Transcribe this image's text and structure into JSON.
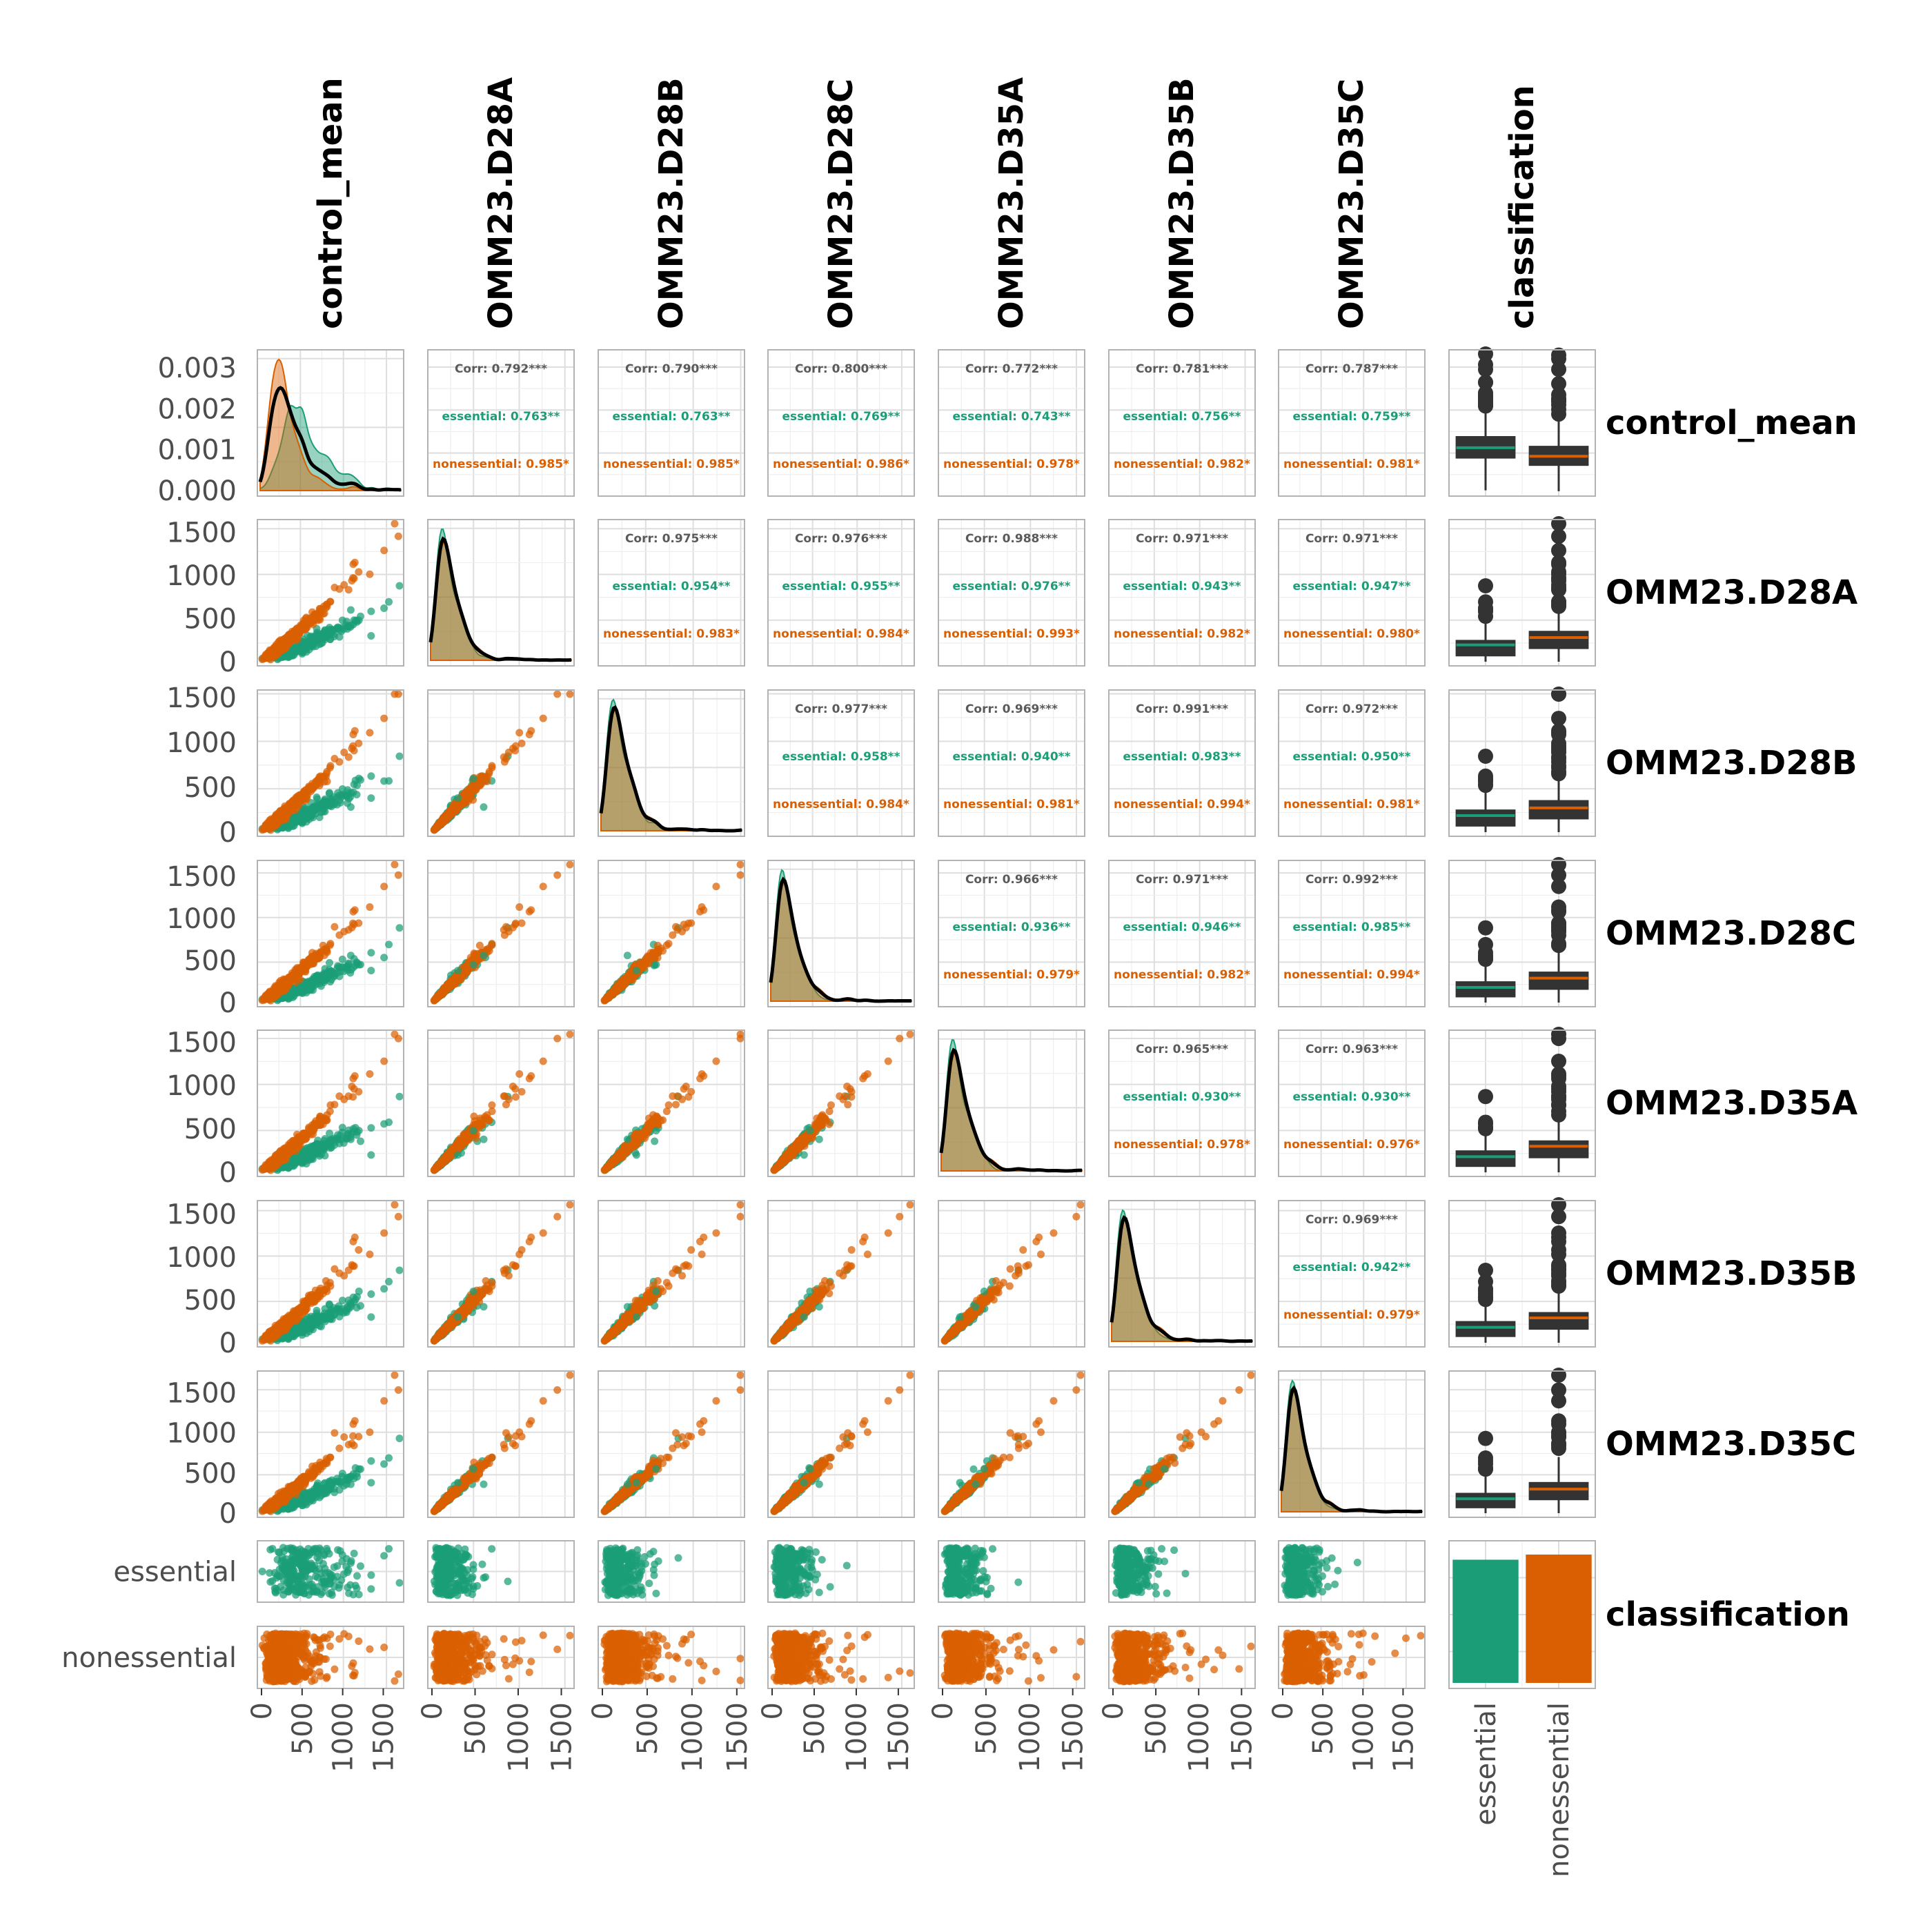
{
  "colors": {
    "essential": "#1b9e77",
    "nonessential": "#d95f02",
    "overall": "#000000",
    "corr_overall": "#5a5a5a",
    "box_fill": "#333333"
  },
  "chart_data": {
    "type": "pairs",
    "variables": [
      "control_mean",
      "OMM23.D28A",
      "OMM23.D28B",
      "OMM23.D28C",
      "OMM23.D35A",
      "OMM23.D35B",
      "OMM23.D35C",
      "classification"
    ],
    "groups": [
      "essential",
      "nonessential"
    ],
    "numeric_tick_labels": [
      "0",
      "500",
      "1000",
      "1500"
    ],
    "density_y_tick_labels": [
      "0.003",
      "0.002",
      "0.001",
      "0.000"
    ],
    "density_ylim": [
      0,
      0.0032
    ],
    "numeric_ranges": {
      "control_mean": [
        0,
        1700
      ],
      "OMM23.D28A": [
        0,
        1600
      ],
      "OMM23.D28B": [
        0,
        1540
      ],
      "OMM23.D28C": [
        0,
        1640
      ],
      "OMM23.D35A": [
        0,
        1590
      ],
      "OMM23.D35B": [
        0,
        1610
      ],
      "OMM23.D35C": [
        0,
        1720
      ]
    },
    "correlation_rows": [
      [
        "OMM23.D28A",
        "OMM23.D28B",
        "OMM23.D28C",
        "OMM23.D35A",
        "OMM23.D35B",
        "OMM23.D35C"
      ],
      [
        "OMM23.D28B",
        "OMM23.D28C",
        "OMM23.D35A",
        "OMM23.D35B",
        "OMM23.D35C"
      ],
      [
        "OMM23.D28C",
        "OMM23.D35A",
        "OMM23.D35B",
        "OMM23.D35C"
      ],
      [
        "OMM23.D35A",
        "OMM23.D35B",
        "OMM23.D35C"
      ],
      [
        "OMM23.D35B",
        "OMM23.D35C"
      ],
      [
        "OMM23.D35C"
      ]
    ],
    "correlations": [
      [
        {
          "overall": "Corr: 0.792***",
          "essential": "essential: 0.763**",
          "nonessential": "nonessential: 0.985*"
        },
        {
          "overall": "Corr: 0.790***",
          "essential": "essential: 0.763**",
          "nonessential": "nonessential: 0.985*"
        },
        {
          "overall": "Corr: 0.800***",
          "essential": "essential: 0.769**",
          "nonessential": "nonessential: 0.986*"
        },
        {
          "overall": "Corr: 0.772***",
          "essential": "essential: 0.743**",
          "nonessential": "nonessential: 0.978*"
        },
        {
          "overall": "Corr: 0.781***",
          "essential": "essential: 0.756**",
          "nonessential": "nonessential: 0.982*"
        },
        {
          "overall": "Corr: 0.787***",
          "essential": "essential: 0.759**",
          "nonessential": "nonessential: 0.981*"
        }
      ],
      [
        {
          "overall": "Corr: 0.975***",
          "essential": "essential: 0.954**",
          "nonessential": "nonessential: 0.983*"
        },
        {
          "overall": "Corr: 0.976***",
          "essential": "essential: 0.955**",
          "nonessential": "nonessential: 0.984*"
        },
        {
          "overall": "Corr: 0.988***",
          "essential": "essential: 0.976**",
          "nonessential": "nonessential: 0.993*"
        },
        {
          "overall": "Corr: 0.971***",
          "essential": "essential: 0.943**",
          "nonessential": "nonessential: 0.982*"
        },
        {
          "overall": "Corr: 0.971***",
          "essential": "essential: 0.947**",
          "nonessential": "nonessential: 0.980*"
        }
      ],
      [
        {
          "overall": "Corr: 0.977***",
          "essential": "essential: 0.958**",
          "nonessential": "nonessential: 0.984*"
        },
        {
          "overall": "Corr: 0.969***",
          "essential": "essential: 0.940**",
          "nonessential": "nonessential: 0.981*"
        },
        {
          "overall": "Corr: 0.991***",
          "essential": "essential: 0.983**",
          "nonessential": "nonessential: 0.994*"
        },
        {
          "overall": "Corr: 0.972***",
          "essential": "essential: 0.950**",
          "nonessential": "nonessential: 0.981*"
        }
      ],
      [
        {
          "overall": "Corr: 0.966***",
          "essential": "essential: 0.936**",
          "nonessential": "nonessential: 0.979*"
        },
        {
          "overall": "Corr: 0.971***",
          "essential": "essential: 0.946**",
          "nonessential": "nonessential: 0.982*"
        },
        {
          "overall": "Corr: 0.992***",
          "essential": "essential: 0.985**",
          "nonessential": "nonessential: 0.994*"
        }
      ],
      [
        {
          "overall": "Corr: 0.965***",
          "essential": "essential: 0.930**",
          "nonessential": "nonessential: 0.978*"
        },
        {
          "overall": "Corr: 0.963***",
          "essential": "essential: 0.930**",
          "nonessential": "nonessential: 0.976*"
        }
      ],
      [
        {
          "overall": "Corr: 0.969***",
          "essential": "essential: 0.942**",
          "nonessential": "nonessential: 0.979*"
        }
      ]
    ],
    "boxplots": {
      "control_mean": {
        "essential": {
          "q1": 420,
          "median": 545,
          "q3": 680,
          "whisker_low": 20,
          "whisker_high": 1050
        },
        "nonessential": {
          "q1": 330,
          "median": 440,
          "q3": 560,
          "whisker_low": 10,
          "whisker_high": 900
        }
      },
      "OMM23.D28A": {
        "essential": {
          "q1": 70,
          "median": 195,
          "q3": 245,
          "whisker_low": 0,
          "whisker_high": 500
        },
        "nonessential": {
          "q1": 155,
          "median": 280,
          "q3": 350,
          "whisker_low": 0,
          "whisker_high": 640
        }
      },
      "OMM23.D28B": {
        "essential": {
          "q1": 70,
          "median": 185,
          "q3": 245,
          "whisker_low": 0,
          "whisker_high": 500
        },
        "nonessential": {
          "q1": 150,
          "median": 270,
          "q3": 350,
          "whisker_low": 0,
          "whisker_high": 640
        }
      },
      "OMM23.D28C": {
        "essential": {
          "q1": 70,
          "median": 180,
          "q3": 245,
          "whisker_low": 0,
          "whisker_high": 500
        },
        "nonessential": {
          "q1": 160,
          "median": 290,
          "q3": 360,
          "whisker_low": 0,
          "whisker_high": 660
        }
      },
      "OMM23.D35A": {
        "essential": {
          "q1": 70,
          "median": 180,
          "q3": 245,
          "whisker_low": 0,
          "whisker_high": 500
        },
        "nonessential": {
          "q1": 170,
          "median": 300,
          "q3": 360,
          "whisker_low": 0,
          "whisker_high": 660
        }
      },
      "OMM23.D35B": {
        "essential": {
          "q1": 75,
          "median": 180,
          "q3": 245,
          "whisker_low": 0,
          "whisker_high": 500
        },
        "nonessential": {
          "q1": 160,
          "median": 290,
          "q3": 350,
          "whisker_low": 0,
          "whisker_high": 640
        }
      },
      "OMM23.D35C": {
        "essential": {
          "q1": 70,
          "median": 180,
          "q3": 245,
          "whisker_low": 0,
          "whisker_high": 500
        },
        "nonessential": {
          "q1": 170,
          "median": 300,
          "q3": 380,
          "whisker_low": 0,
          "whisker_high": 700
        }
      }
    },
    "class_counts": {
      "essential": 0.96,
      "nonessential": 1.0
    },
    "class_x_tick_labels": [
      "essential",
      "nonessential"
    ],
    "class_y_tick_labels": [
      "essential",
      "nonessential"
    ],
    "grid": true,
    "legend": "none"
  }
}
